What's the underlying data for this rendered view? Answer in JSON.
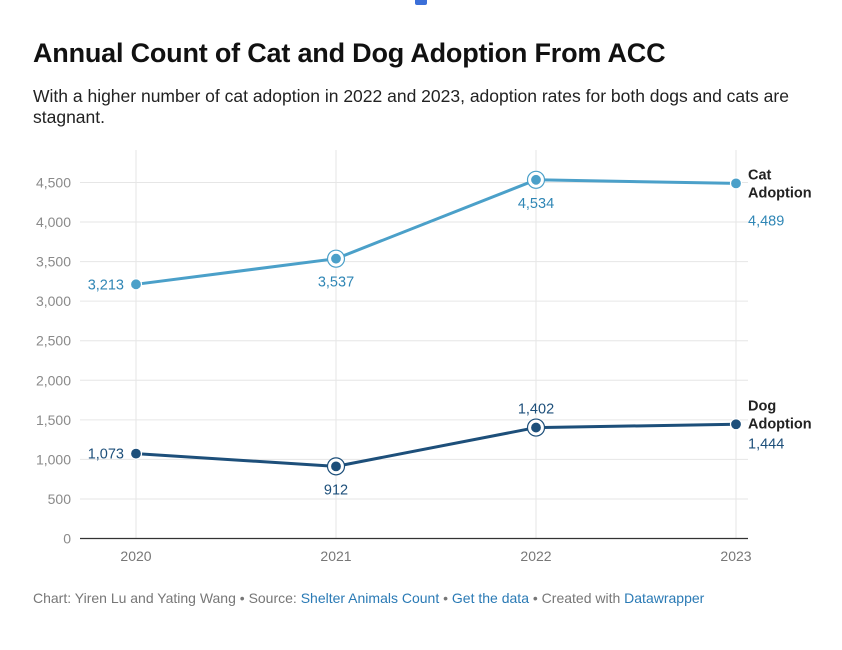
{
  "header": {
    "title": "Annual Count of Cat and Dog Adoption From ACC",
    "subtitle": "With a higher number of cat adoption in 2022 and 2023, adoption rates for both dogs and cats are stagnant."
  },
  "chart_data": {
    "type": "line",
    "x": [
      "2020",
      "2021",
      "2022",
      "2023"
    ],
    "ylim": [
      0,
      4500
    ],
    "yticks": [
      0,
      500,
      1000,
      1500,
      2000,
      2500,
      3000,
      3500,
      4000,
      4500
    ],
    "ytick_labels": [
      "0",
      "500",
      "1,000",
      "1,500",
      "2,000",
      "2,500",
      "3,000",
      "3,500",
      "4,000",
      "4,500"
    ],
    "grid": true,
    "series": [
      {
        "name": "Cat Adoption",
        "name_lines": [
          "Cat",
          "Adoption"
        ],
        "values": [
          3213,
          3537,
          4534,
          4489
        ],
        "labels": [
          "3,213",
          "3,537",
          "4,534",
          "4,489"
        ],
        "color": "#4ba0c9",
        "label_color": "#2f86b5"
      },
      {
        "name": "Dog Adoption",
        "name_lines": [
          "Dog",
          "Adoption"
        ],
        "values": [
          1073,
          912,
          1402,
          1444
        ],
        "labels": [
          "1,073",
          "912",
          "1,402",
          "1,444"
        ],
        "color": "#1d4f7a",
        "label_color": "#1d4f7a"
      }
    ]
  },
  "footer": {
    "chart_prefix": "Chart: Yiren Lu and Yating Wang",
    "sep": " • ",
    "source_prefix": "Source: ",
    "source_link": "Shelter Animals Count",
    "data_link": "Get the data",
    "created_prefix": "Created with ",
    "created_link": "Datawrapper"
  }
}
